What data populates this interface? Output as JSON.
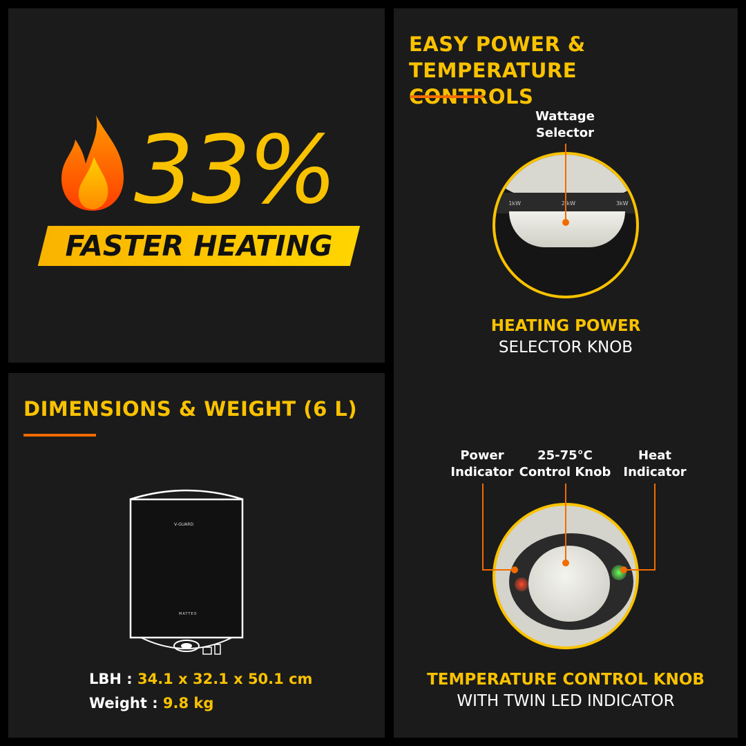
{
  "hero": {
    "percent": "33%",
    "tagline": "FASTER HEATING",
    "icon": "flame-icon"
  },
  "controls": {
    "title_line1": "EASY POWER & TEMPERATURE",
    "title_line2": "CONTROLS",
    "wattage_label_1": "Wattage",
    "wattage_label_2": "Selector",
    "knob_scale": [
      "1kW",
      "2 kW",
      "3kW"
    ],
    "power_caption_1": "HEATING POWER",
    "power_caption_2": "SELECTOR KNOB",
    "power_ind_1": "Power",
    "power_ind_2": "Indicator",
    "control_knob_1": "25-75°C",
    "control_knob_2": "Control Knob",
    "heat_ind_1": "Heat",
    "heat_ind_2": "Indicator",
    "temp_caption_1": "TEMPERATURE CONTROL KNOB",
    "temp_caption_2": "WITH TWIN LED INDICATOR"
  },
  "dimensions": {
    "title": "DIMENSIONS & WEIGHT (6 L)",
    "brand": "V-GUARD",
    "model": "MATTEO",
    "lbh_label": "LBH :",
    "lbh_value": "34.1 x 32.1 x 50.1 cm",
    "weight_label": "Weight :",
    "weight_value": "9.8 kg"
  },
  "colors": {
    "accent": "#f9c200",
    "line": "#f26b00",
    "panel": "#1b1b1b",
    "led_red": "#ff2a1a",
    "led_green": "#3cff3c"
  }
}
